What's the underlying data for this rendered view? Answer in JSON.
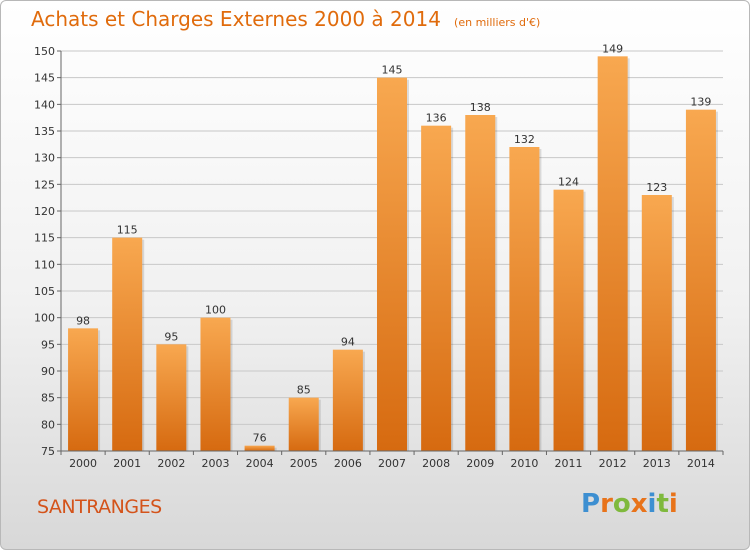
{
  "title": "Achats et Charges Externes 2000 à 2014",
  "unit_label": "(en milliers d'€)",
  "commune": "SANTRANGES",
  "brand": {
    "text": "Proxiti",
    "letters": [
      {
        "char": "P",
        "color": "#3d8fd1"
      },
      {
        "char": "r",
        "color": "#e8731a"
      },
      {
        "char": "o",
        "color": "#7fb93d"
      },
      {
        "char": "x",
        "color": "#e8731a"
      },
      {
        "char": "i",
        "color": "#3d8fd1"
      },
      {
        "char": "t",
        "color": "#7fb93d"
      },
      {
        "char": "i",
        "color": "#e8731a"
      }
    ]
  },
  "colors": {
    "bar_light": "#f8a850",
    "bar_dark": "#d66a10",
    "grid": "#c8c8c8",
    "axis": "#666666"
  },
  "chart_data": {
    "type": "bar",
    "title": "Achats et Charges Externes 2000 à 2014",
    "subtitle": "(en milliers d'€)",
    "categories": [
      "2000",
      "2001",
      "2002",
      "2003",
      "2004",
      "2005",
      "2006",
      "2007",
      "2008",
      "2009",
      "2010",
      "2011",
      "2012",
      "2013",
      "2014"
    ],
    "values": [
      98,
      115,
      95,
      100,
      76,
      85,
      94,
      145,
      136,
      138,
      132,
      124,
      149,
      123,
      139
    ],
    "ylim": [
      75,
      150
    ],
    "yticks": [
      75,
      80,
      85,
      90,
      95,
      100,
      105,
      110,
      115,
      120,
      125,
      130,
      135,
      140,
      145,
      150
    ],
    "grid": true,
    "legend": "none"
  }
}
